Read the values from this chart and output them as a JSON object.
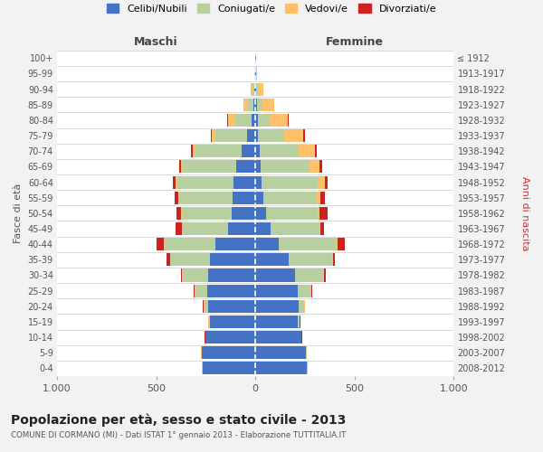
{
  "age_groups": [
    "0-4",
    "5-9",
    "10-14",
    "15-19",
    "20-24",
    "25-29",
    "30-34",
    "35-39",
    "40-44",
    "45-49",
    "50-54",
    "55-59",
    "60-64",
    "65-69",
    "70-74",
    "75-79",
    "80-84",
    "85-89",
    "90-94",
    "95-99",
    "100+"
  ],
  "birth_years": [
    "2008-2012",
    "2003-2007",
    "1998-2002",
    "1993-1997",
    "1988-1992",
    "1983-1987",
    "1978-1982",
    "1973-1977",
    "1968-1972",
    "1963-1967",
    "1958-1962",
    "1953-1957",
    "1948-1952",
    "1943-1947",
    "1938-1942",
    "1933-1937",
    "1928-1932",
    "1923-1927",
    "1918-1922",
    "1913-1917",
    "≤ 1912"
  ],
  "male_celibe": [
    265,
    270,
    250,
    230,
    240,
    245,
    240,
    230,
    200,
    140,
    120,
    115,
    110,
    95,
    70,
    40,
    20,
    8,
    5,
    2,
    2
  ],
  "male_coniugato": [
    2,
    2,
    2,
    5,
    20,
    60,
    130,
    200,
    260,
    230,
    250,
    270,
    285,
    270,
    230,
    160,
    80,
    30,
    8,
    2,
    0
  ],
  "male_vedovo": [
    2,
    2,
    2,
    2,
    2,
    2,
    2,
    2,
    2,
    2,
    3,
    5,
    8,
    10,
    15,
    20,
    40,
    20,
    10,
    2,
    0
  ],
  "male_divorziato": [
    2,
    2,
    2,
    2,
    2,
    5,
    5,
    15,
    35,
    30,
    25,
    15,
    15,
    10,
    10,
    5,
    2,
    0,
    0,
    0,
    0
  ],
  "female_celibe": [
    260,
    255,
    230,
    215,
    220,
    215,
    200,
    170,
    120,
    75,
    55,
    40,
    30,
    25,
    20,
    15,
    12,
    10,
    5,
    2,
    2
  ],
  "female_coniugato": [
    2,
    2,
    2,
    8,
    25,
    65,
    140,
    215,
    290,
    250,
    260,
    270,
    285,
    250,
    200,
    130,
    60,
    25,
    8,
    2,
    0
  ],
  "female_vedovo": [
    2,
    2,
    2,
    2,
    3,
    3,
    5,
    5,
    5,
    5,
    10,
    20,
    35,
    50,
    80,
    95,
    90,
    60,
    25,
    5,
    2
  ],
  "female_divorziato": [
    2,
    2,
    2,
    2,
    2,
    5,
    10,
    10,
    35,
    15,
    40,
    20,
    15,
    10,
    10,
    8,
    5,
    2,
    0,
    0,
    0
  ],
  "colors": {
    "celibe": "#4472c4",
    "coniugato": "#b8cfa0",
    "vedovo": "#ffc06a",
    "divorziato": "#cc2222"
  },
  "xlim": 1000,
  "title": "Popolazione per età, sesso e stato civile - 2013",
  "subtitle": "COMUNE DI CORMANO (MI) - Dati ISTAT 1° gennaio 2013 - Elaborazione TUTTITALIA.IT",
  "ylabel_left": "Fasce di età",
  "ylabel_right": "Anni di nascita",
  "xlabel_left": "Maschi",
  "xlabel_right": "Femmine",
  "legend_labels": [
    "Celibi/Nubili",
    "Coniugati/e",
    "Vedovi/e",
    "Divorziati/e"
  ],
  "bg_color": "#f2f2f2",
  "plot_bg": "#ffffff"
}
